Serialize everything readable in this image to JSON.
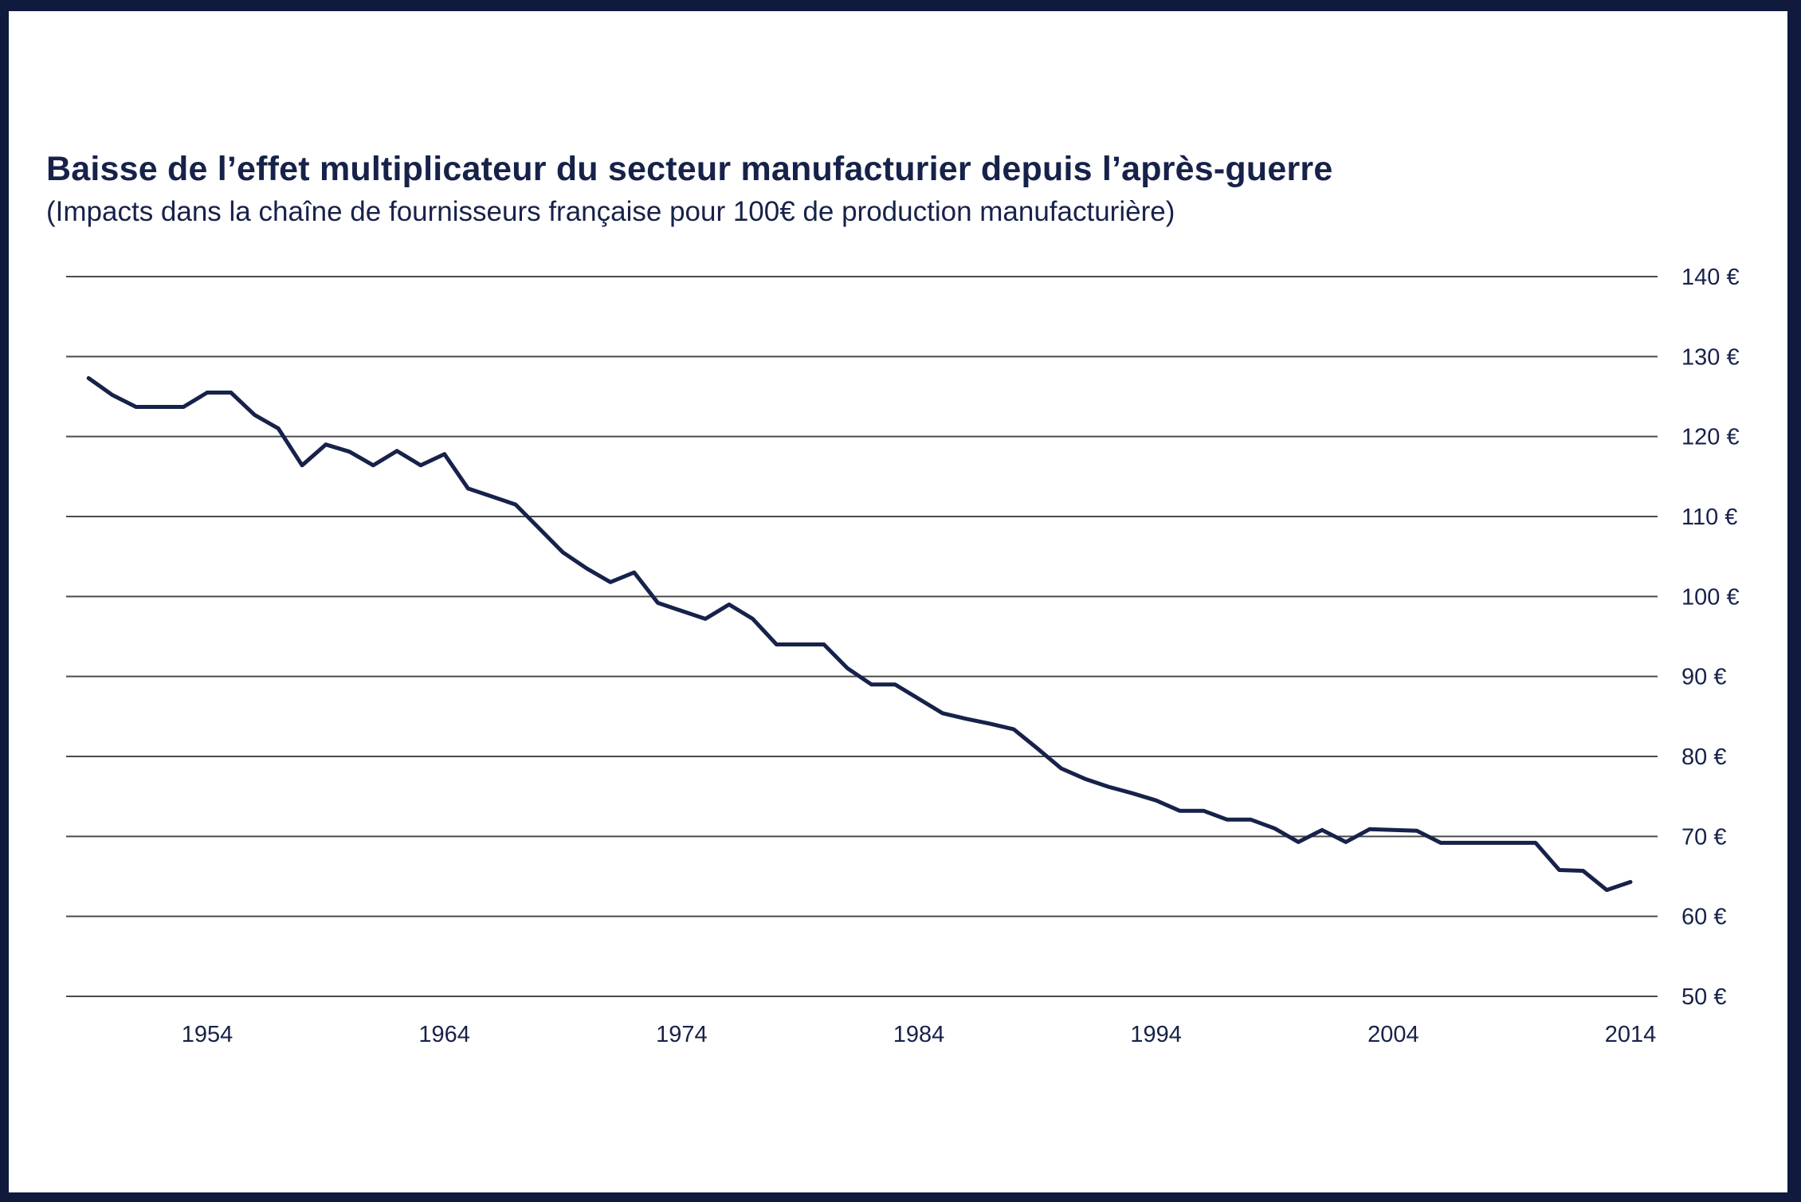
{
  "chart_data": {
    "type": "line",
    "title": "Baisse de l’effet multiplicateur du secteur manufacturier depuis l’après-guerre",
    "subtitle": "(Impacts dans la chaîne de fournisseurs française pour 100€  de production manufacturière)",
    "xlabel": "",
    "ylabel": "",
    "y_ticks": [
      50,
      60,
      70,
      80,
      90,
      100,
      110,
      120,
      130,
      140
    ],
    "y_tick_labels": [
      "50 €",
      "60 €",
      "70 €",
      "80 €",
      "90 €",
      "100 €",
      "110 €",
      "120 €",
      "130 €",
      "140 €"
    ],
    "ylim": [
      50,
      140
    ],
    "x_ticks": [
      1954,
      1964,
      1974,
      1984,
      1994,
      2004,
      2014
    ],
    "x_tick_labels": [
      "1954",
      "1964",
      "1974",
      "1984",
      "1994",
      "2004",
      "2014"
    ],
    "xlim": [
      1948,
      2015
    ],
    "grid": true,
    "color": "#17224a",
    "series": [
      {
        "x": [
          1949,
          1950,
          1951,
          1952,
          1953,
          1954,
          1955,
          1956,
          1957,
          1958,
          1959,
          1960,
          1961,
          1962,
          1963,
          1964,
          1965,
          1966,
          1967,
          1968,
          1969,
          1970,
          1971,
          1972,
          1973,
          1974,
          1975,
          1976,
          1977,
          1978,
          1979,
          1980,
          1981,
          1982,
          1983,
          1984,
          1985,
          1986,
          1987,
          1988,
          1989,
          1990,
          1991,
          1992,
          1993,
          1994,
          1995,
          1996,
          1997,
          1998,
          1999,
          2000,
          2001,
          2002,
          2003,
          2004,
          2005,
          2006,
          2007,
          2008,
          2009,
          2010,
          2011,
          2012,
          2013,
          2014
        ],
        "values": [
          127.3,
          125.2,
          123.7,
          123.7,
          123.7,
          125.5,
          125.5,
          122.7,
          121,
          116.4,
          119,
          118.1,
          116.4,
          118.2,
          116.4,
          117.8,
          113.5,
          112.5,
          111.5,
          108.5,
          105.5,
          103.5,
          101.8,
          103,
          99.2,
          98.2,
          97.2,
          99,
          97.2,
          94,
          94,
          94,
          91,
          89,
          89,
          87.2,
          85.4,
          84.7,
          84.1,
          83.4,
          81,
          78.5,
          77.2,
          76.2,
          75.4,
          74.5,
          73.2,
          73.2,
          72.1,
          72.1,
          71,
          69.3,
          70.8,
          69.3,
          70.9,
          70.8,
          70.7,
          69.2,
          69.2,
          69.2,
          69.2,
          69.2,
          65.8,
          65.7,
          63.3,
          64.3
        ]
      }
    ]
  }
}
